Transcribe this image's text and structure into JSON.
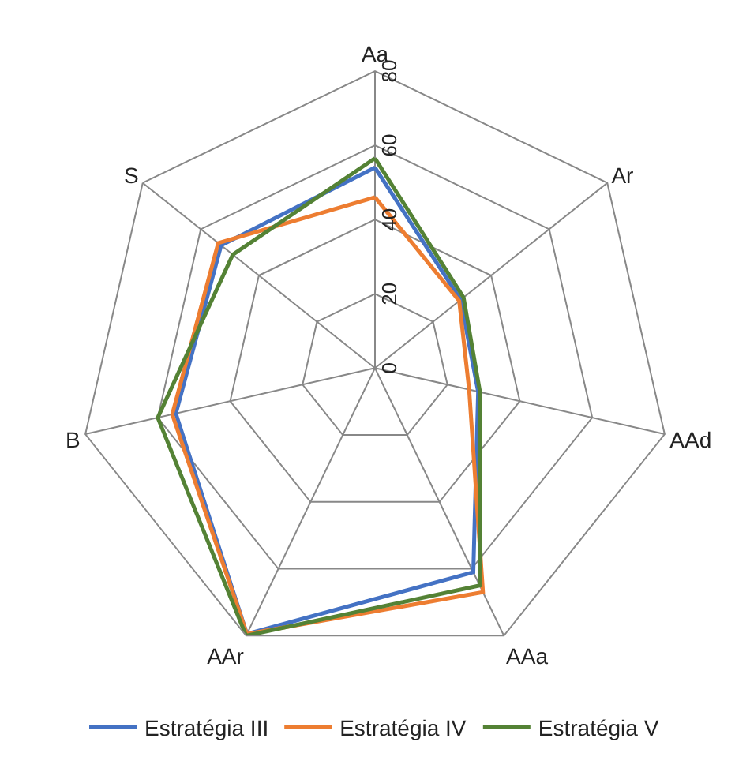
{
  "chart_data": {
    "type": "radar",
    "categories": [
      "Aa",
      "Ar",
      "AAd",
      "AAa",
      "AAr",
      "B",
      "S"
    ],
    "series": [
      {
        "name": "Estratégia III",
        "color": "#4472c4",
        "values": [
          54,
          29.5,
          28.5,
          61,
          79.5,
          55,
          53
        ]
      },
      {
        "name": "Estratégia IV",
        "color": "#ed7d31",
        "values": [
          46,
          29,
          26,
          67,
          79.5,
          56,
          54
        ]
      },
      {
        "name": "Estratégia V",
        "color": "#548235",
        "values": [
          56.5,
          30.5,
          29,
          65,
          80,
          60,
          49
        ]
      }
    ],
    "ylim": [
      0,
      80
    ],
    "yticks": [
      0,
      20,
      40,
      60,
      80
    ],
    "grid": true,
    "legend": "bottom",
    "marker": "none",
    "line_style": "solid"
  }
}
